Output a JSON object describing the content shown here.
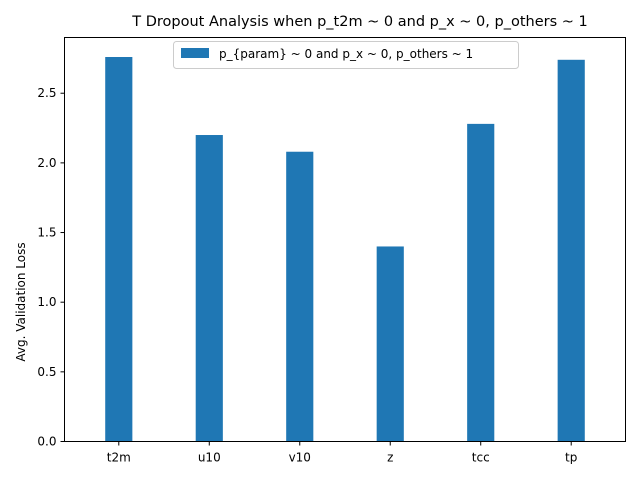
{
  "chart_data": {
    "type": "bar",
    "title": "T Dropout Analysis when p_t2m ~ 0 and p_x ~ 0, p_others ~ 1",
    "xlabel": "",
    "ylabel": "Avg. Validation Loss",
    "categories": [
      "t2m",
      "u10",
      "v10",
      "z",
      "tcc",
      "tp"
    ],
    "series": [
      {
        "name": "p_{param} ~ 0 and p_x ~ 0, p_others ~ 1",
        "color": "#1f77b4",
        "values": [
          2.76,
          2.2,
          2.08,
          1.4,
          2.28,
          2.74
        ]
      }
    ],
    "ylim": [
      0,
      2.9
    ],
    "yticks": [
      "0.0",
      "0.5",
      "1.0",
      "1.5",
      "2.0",
      "2.5"
    ],
    "grid": false,
    "legend_position": "top-center"
  }
}
